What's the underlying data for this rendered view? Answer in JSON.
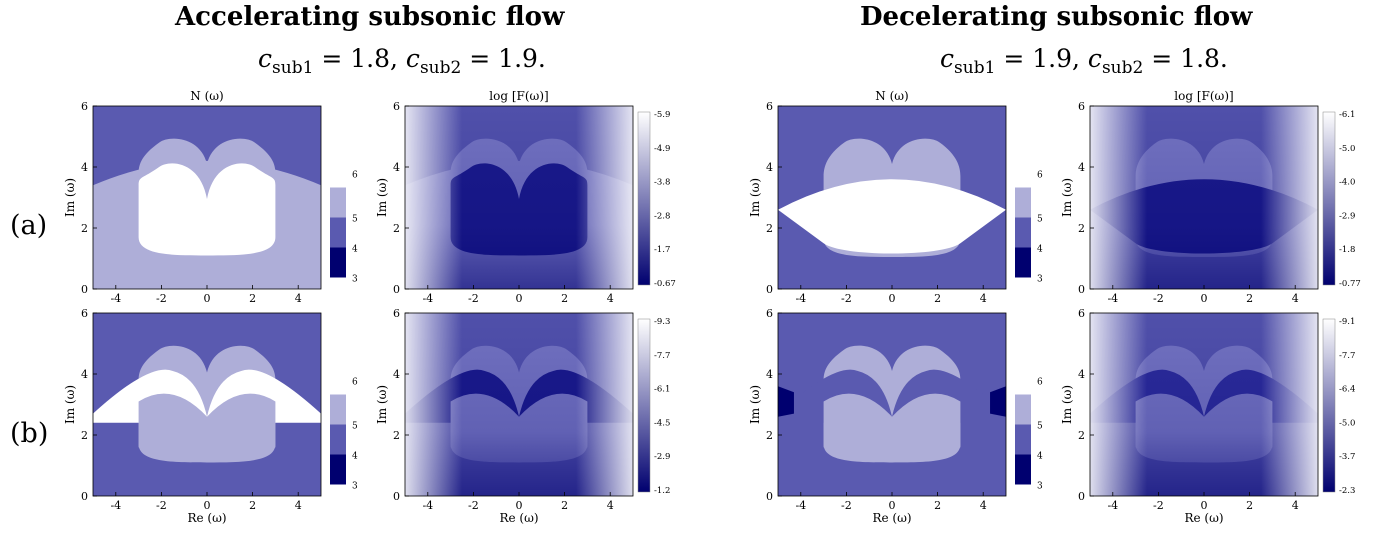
{
  "header": {
    "left_title": "Accelerating subsonic flow",
    "right_title": "Decelerating subsonic flow",
    "left_params": {
      "c1_value": "1.8",
      "c2_value": "1.9."
    },
    "right_params": {
      "c1_value": "1.9",
      "c2_value": "1.8."
    },
    "c_symbol": "c",
    "sub1": "sub1",
    "sub2": "sub2",
    "eq": "=",
    "comma": ","
  },
  "row_labels": [
    "(a)",
    "(b)"
  ],
  "axes": {
    "xlabel": "Re (ω)",
    "ylabel": "Im (ω)",
    "N_title": "N (ω)",
    "F_title": "log [F(ω)]",
    "xticks": [
      "-4",
      "-2",
      "0",
      "2",
      "4"
    ],
    "yticks": [
      "0",
      "2",
      "4",
      "6"
    ]
  },
  "colors": {
    "dark": "#00006f",
    "mid": "#5a5ab0",
    "light": "#aeaed8",
    "white": "#ffffff"
  },
  "chart_data": [
    {
      "type": "heatmap",
      "panel": "a-accel-N",
      "title": "N (ω)",
      "xlabel": "",
      "ylabel": "Im (ω)",
      "xlim": [
        -5,
        5
      ],
      "ylim": [
        0,
        6
      ],
      "colorbar": {
        "ticks": [
          "6",
          "5",
          "4",
          "3"
        ]
      },
      "regions": {
        "outer": 4,
        "middle": 5,
        "inner": 6
      }
    },
    {
      "type": "heatmap",
      "panel": "a-accel-F",
      "title": "log [F(ω)]",
      "xlabel": "",
      "ylabel": "Im (ω)",
      "xlim": [
        -5,
        5
      ],
      "ylim": [
        0,
        6
      ],
      "colorbar": {
        "ticks": [
          "-5.9",
          "-4.9",
          "-3.8",
          "-2.8",
          "-1.7",
          "-0.67"
        ]
      }
    },
    {
      "type": "heatmap",
      "panel": "a-decel-N",
      "title": "N (ω)",
      "xlabel": "",
      "ylabel": "Im (ω)",
      "xlim": [
        -5,
        5
      ],
      "ylim": [
        0,
        6
      ],
      "colorbar": {
        "ticks": [
          "6",
          "5",
          "4",
          "3"
        ]
      }
    },
    {
      "type": "heatmap",
      "panel": "a-decel-F",
      "title": "log [F(ω)]",
      "xlabel": "",
      "ylabel": "Im (ω)",
      "xlim": [
        -5,
        5
      ],
      "ylim": [
        0,
        6
      ],
      "colorbar": {
        "ticks": [
          "-6.1",
          "-5.0",
          "-4.0",
          "-2.9",
          "-1.8",
          "-0.77"
        ]
      }
    },
    {
      "type": "heatmap",
      "panel": "b-accel-N",
      "title": "",
      "xlabel": "Re (ω)",
      "ylabel": "Im (ω)",
      "xlim": [
        -5,
        5
      ],
      "ylim": [
        0,
        6
      ],
      "colorbar": {
        "ticks": [
          "6",
          "5",
          "4",
          "3"
        ]
      }
    },
    {
      "type": "heatmap",
      "panel": "b-accel-F",
      "title": "",
      "xlabel": "Re (ω)",
      "ylabel": "Im (ω)",
      "xlim": [
        -5,
        5
      ],
      "ylim": [
        0,
        6
      ],
      "colorbar": {
        "ticks": [
          "-9.3",
          "-7.7",
          "-6.1",
          "-4.5",
          "-2.9",
          "-1.2"
        ]
      }
    },
    {
      "type": "heatmap",
      "panel": "b-decel-N",
      "title": "",
      "xlabel": "Re (ω)",
      "ylabel": "Im (ω)",
      "xlim": [
        -5,
        5
      ],
      "ylim": [
        0,
        6
      ],
      "colorbar": {
        "ticks": [
          "6",
          "5",
          "4",
          "3"
        ]
      }
    },
    {
      "type": "heatmap",
      "panel": "b-decel-F",
      "title": "",
      "xlabel": "Re (ω)",
      "ylabel": "Im (ω)",
      "xlim": [
        -5,
        5
      ],
      "ylim": [
        0,
        6
      ],
      "colorbar": {
        "ticks": [
          "-9.1",
          "-7.7",
          "-6.4",
          "-5.0",
          "-3.7",
          "-2.3"
        ]
      }
    }
  ]
}
